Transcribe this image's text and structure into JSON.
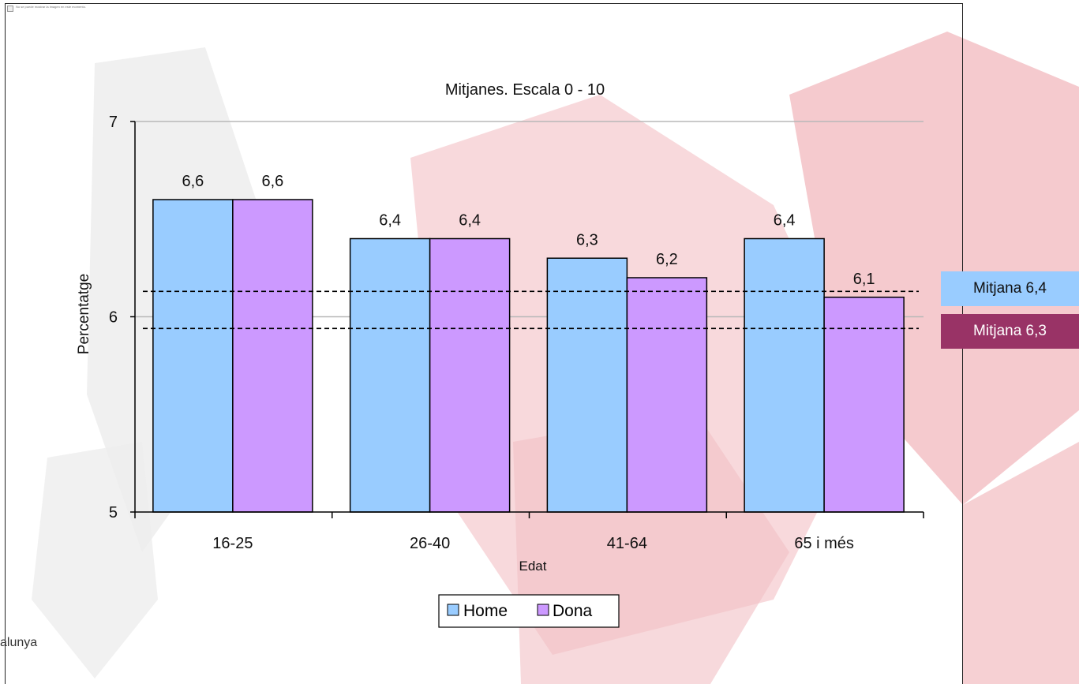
{
  "broken_image_text": "No se puede mostrar la imagen en este momento.",
  "footer_text": "alunya",
  "badges": {
    "home": "Mitjana 6,4",
    "dona": "Mitjana 6,3"
  },
  "colors": {
    "home": "#99ccff",
    "dona": "#cc99ff",
    "badge_home": "#99ccff",
    "badge_dona": "#993366",
    "background_watermark": "#f3c9cc"
  },
  "chart_data": {
    "type": "bar",
    "title": "Mitjanes. Escala 0 - 10",
    "xlabel": "Edat",
    "ylabel": "Percentatge",
    "categories": [
      "16-25",
      "26-40",
      "41-64",
      "65 i més"
    ],
    "series": [
      {
        "name": "Home",
        "values": [
          6.6,
          6.4,
          6.3,
          6.4
        ],
        "labels": [
          "6,6",
          "6,4",
          "6,3",
          "6,4"
        ]
      },
      {
        "name": "Dona",
        "values": [
          6.6,
          6.4,
          6.2,
          6.1
        ],
        "labels": [
          "6,6",
          "6,4",
          "6,2",
          "6,1"
        ]
      }
    ],
    "ylim": [
      5,
      7
    ],
    "yticks": [
      5,
      6,
      7
    ],
    "ytick_labels": [
      "5",
      "6",
      "7"
    ],
    "reference_lines": [
      6.13,
      5.94
    ],
    "grid": true,
    "legend_position": "bottom"
  }
}
